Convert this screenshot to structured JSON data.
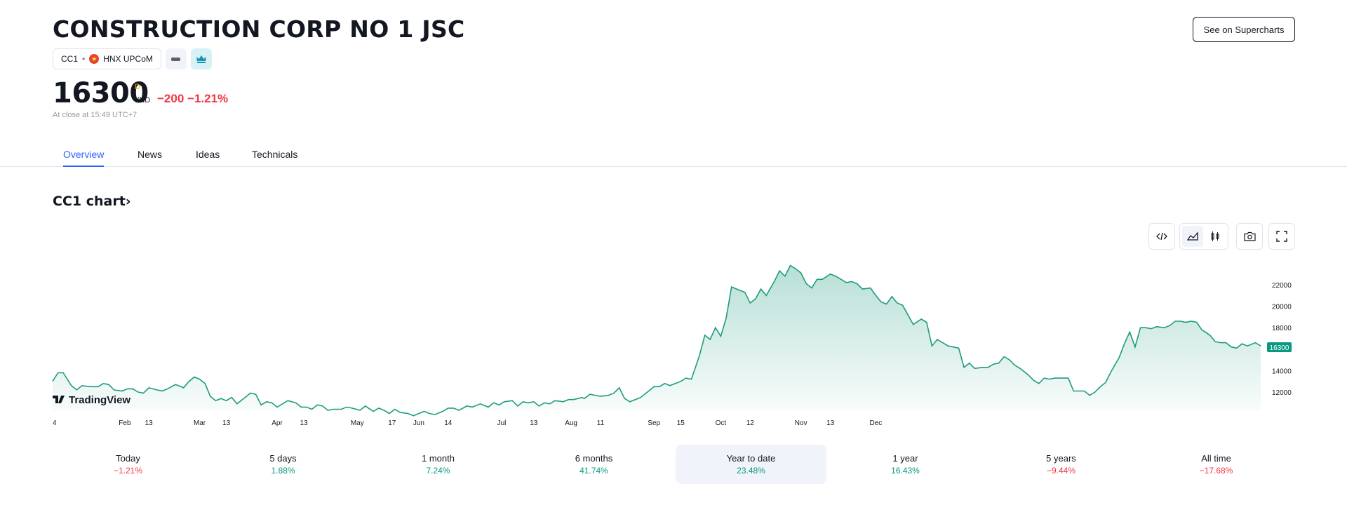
{
  "header": {
    "title": "CONSTRUCTION CORP NO 1 JSC",
    "see_button": "See on Supercharts",
    "symbol": "CC1",
    "separator": "•",
    "exchange": "HNX UPCoM",
    "flag_star": "★"
  },
  "quote": {
    "price": "16300",
    "superscript": "D",
    "currency": "VND",
    "change": "−200 −1.21%",
    "note": "At close at 15:49 UTC+7",
    "change_color": "#f23645"
  },
  "tabs": [
    "Overview",
    "News",
    "Ideas",
    "Technicals"
  ],
  "chart_section": {
    "title": "CC1 chart›",
    "brand": "TradingView",
    "last_price_label": "16300",
    "line_color": "#1e9b7f"
  },
  "toolbar_icons": [
    "embed-icon",
    "area-chart-icon",
    "candles-icon",
    "camera-icon",
    "fullscreen-icon"
  ],
  "chart_data": {
    "type": "area",
    "y_ticks": [
      "22000",
      "20000",
      "18000",
      "16000",
      "14000",
      "12000"
    ],
    "ylim": [
      10800,
      24000
    ],
    "x_ticks": [
      "4",
      "Feb",
      "13",
      "Mar",
      "13",
      "Apr",
      "13",
      "May",
      "17",
      "Jun",
      "14",
      "Jul",
      "13",
      "Aug",
      "11",
      "Sep",
      "15",
      "Oct",
      "12",
      "Nov",
      "13",
      "Dec"
    ],
    "x_tick_days": [
      0,
      27,
      36,
      55,
      65,
      84,
      94,
      114,
      127,
      137,
      148,
      168,
      180,
      194,
      205,
      225,
      235,
      250,
      261,
      280,
      291,
      308
    ],
    "series": [
      {
        "values": [
          [
            0,
            13000
          ],
          [
            2,
            13800
          ],
          [
            4,
            13800
          ],
          [
            7,
            12600
          ],
          [
            9,
            12200
          ],
          [
            11,
            12600
          ],
          [
            14,
            12500
          ],
          [
            17,
            12500
          ],
          [
            19,
            12800
          ],
          [
            21,
            12700
          ],
          [
            23,
            12200
          ],
          [
            26,
            12100
          ],
          [
            28,
            12300
          ],
          [
            30,
            12300
          ],
          [
            32,
            12000
          ],
          [
            34,
            11900
          ],
          [
            36,
            12400
          ],
          [
            39,
            12200
          ],
          [
            41,
            12100
          ],
          [
            43,
            12300
          ],
          [
            46,
            12700
          ],
          [
            48,
            12500
          ],
          [
            49,
            12400
          ],
          [
            51,
            13000
          ],
          [
            53,
            13400
          ],
          [
            55,
            13200
          ],
          [
            57,
            12800
          ],
          [
            59,
            11600
          ],
          [
            61,
            11200
          ],
          [
            63,
            11400
          ],
          [
            65,
            11200
          ],
          [
            67,
            11500
          ],
          [
            69,
            10900
          ],
          [
            72,
            11500
          ],
          [
            74,
            11900
          ],
          [
            76,
            11800
          ],
          [
            78,
            10800
          ],
          [
            80,
            11100
          ],
          [
            82,
            11000
          ],
          [
            84,
            10600
          ],
          [
            86,
            10900
          ],
          [
            88,
            11200
          ],
          [
            91,
            11000
          ],
          [
            93,
            10600
          ],
          [
            95,
            10600
          ],
          [
            97,
            10400
          ],
          [
            99,
            10800
          ],
          [
            101,
            10700
          ],
          [
            103,
            10300
          ],
          [
            105,
            10400
          ],
          [
            108,
            10400
          ],
          [
            110,
            10600
          ],
          [
            112,
            10500
          ],
          [
            115,
            10300
          ],
          [
            117,
            10700
          ],
          [
            120,
            10200
          ],
          [
            122,
            10500
          ],
          [
            124,
            10300
          ],
          [
            126,
            10000
          ],
          [
            128,
            10400
          ],
          [
            130,
            10100
          ],
          [
            133,
            10000
          ],
          [
            135,
            9800
          ],
          [
            137,
            10000
          ],
          [
            139,
            10200
          ],
          [
            141,
            10000
          ],
          [
            143,
            9900
          ],
          [
            146,
            10200
          ],
          [
            148,
            10500
          ],
          [
            150,
            10500
          ],
          [
            152,
            10300
          ],
          [
            155,
            10700
          ],
          [
            157,
            10600
          ],
          [
            160,
            10900
          ],
          [
            163,
            10600
          ],
          [
            165,
            11000
          ],
          [
            167,
            10800
          ],
          [
            169,
            11100
          ],
          [
            172,
            11200
          ],
          [
            174,
            10700
          ],
          [
            176,
            11100
          ],
          [
            178,
            11000
          ],
          [
            180,
            11100
          ],
          [
            182,
            10700
          ],
          [
            184,
            11000
          ],
          [
            186,
            10900
          ],
          [
            188,
            11200
          ],
          [
            191,
            11100
          ],
          [
            193,
            11300
          ],
          [
            195,
            11300
          ],
          [
            198,
            11500
          ],
          [
            199,
            11400
          ],
          [
            201,
            11800
          ],
          [
            203,
            11700
          ],
          [
            205,
            11600
          ],
          [
            208,
            11700
          ],
          [
            210,
            11900
          ],
          [
            212,
            12400
          ],
          [
            214,
            11400
          ],
          [
            216,
            11100
          ],
          [
            218,
            11300
          ],
          [
            220,
            11500
          ],
          [
            223,
            12100
          ],
          [
            225,
            12500
          ],
          [
            227,
            12500
          ],
          [
            229,
            12800
          ],
          [
            231,
            12600
          ],
          [
            233,
            12800
          ],
          [
            235,
            13000
          ],
          [
            237,
            13300
          ],
          [
            239,
            13200
          ],
          [
            242,
            15400
          ],
          [
            244,
            17300
          ],
          [
            246,
            16900
          ],
          [
            248,
            18000
          ],
          [
            250,
            17200
          ],
          [
            252,
            18900
          ],
          [
            254,
            21800
          ],
          [
            257,
            21500
          ],
          [
            259,
            21300
          ],
          [
            261,
            20300
          ],
          [
            263,
            20700
          ],
          [
            265,
            21600
          ],
          [
            267,
            21000
          ],
          [
            270,
            22300
          ],
          [
            272,
            23300
          ],
          [
            274,
            22800
          ],
          [
            276,
            23800
          ],
          [
            278,
            23500
          ],
          [
            280,
            23100
          ],
          [
            282,
            22100
          ],
          [
            284,
            21700
          ],
          [
            286,
            22500
          ],
          [
            288,
            22500
          ],
          [
            291,
            23000
          ],
          [
            293,
            22800
          ],
          [
            295,
            22500
          ],
          [
            297,
            22200
          ],
          [
            299,
            22300
          ],
          [
            301,
            22100
          ],
          [
            303,
            21600
          ],
          [
            306,
            21700
          ],
          [
            308,
            21000
          ],
          [
            310,
            20400
          ],
          [
            312,
            20200
          ],
          [
            314,
            20900
          ],
          [
            316,
            20300
          ],
          [
            318,
            20100
          ],
          [
            320,
            19200
          ],
          [
            322,
            18300
          ],
          [
            325,
            18800
          ],
          [
            327,
            18500
          ],
          [
            329,
            16300
          ],
          [
            331,
            16900
          ],
          [
            333,
            16600
          ],
          [
            335,
            16300
          ],
          [
            337,
            16200
          ],
          [
            339,
            16100
          ],
          [
            341,
            14300
          ],
          [
            343,
            14700
          ],
          [
            345,
            14200
          ],
          [
            348,
            14300
          ],
          [
            350,
            14300
          ],
          [
            352,
            14600
          ],
          [
            354,
            14700
          ],
          [
            356,
            15300
          ],
          [
            358,
            15000
          ],
          [
            360,
            14500
          ],
          [
            362,
            14200
          ],
          [
            365,
            13600
          ],
          [
            367,
            13100
          ],
          [
            369,
            12800
          ],
          [
            371,
            13300
          ],
          [
            373,
            13200
          ],
          [
            375,
            13300
          ],
          [
            377,
            13300
          ],
          [
            380,
            13300
          ],
          [
            382,
            12100
          ],
          [
            384,
            12100
          ],
          [
            386,
            12100
          ],
          [
            388,
            11700
          ],
          [
            390,
            12000
          ],
          [
            392,
            12500
          ],
          [
            394,
            12900
          ],
          [
            396,
            13900
          ],
          [
            399,
            15200
          ],
          [
            401,
            16500
          ],
          [
            403,
            17600
          ],
          [
            405,
            16200
          ],
          [
            407,
            18000
          ],
          [
            409,
            18000
          ],
          [
            411,
            17900
          ],
          [
            413,
            18100
          ],
          [
            416,
            18000
          ],
          [
            418,
            18200
          ],
          [
            420,
            18600
          ],
          [
            422,
            18600
          ],
          [
            424,
            18500
          ],
          [
            426,
            18600
          ],
          [
            428,
            18500
          ],
          [
            430,
            17800
          ],
          [
            433,
            17300
          ],
          [
            435,
            16700
          ],
          [
            437,
            16600
          ],
          [
            439,
            16600
          ],
          [
            441,
            16200
          ],
          [
            443,
            16100
          ],
          [
            445,
            16500
          ],
          [
            447,
            16300
          ],
          [
            450,
            16600
          ],
          [
            452,
            16300
          ]
        ]
      }
    ]
  },
  "periods": [
    {
      "label": "Today",
      "value": "−1.21%",
      "color": "#f23645"
    },
    {
      "label": "5 days",
      "value": "1.88%",
      "color": "#089981"
    },
    {
      "label": "1 month",
      "value": "7.24%",
      "color": "#089981"
    },
    {
      "label": "6 months",
      "value": "41.74%",
      "color": "#089981"
    },
    {
      "label": "Year to date",
      "value": "23.48%",
      "color": "#089981"
    },
    {
      "label": "1 year",
      "value": "16.43%",
      "color": "#089981"
    },
    {
      "label": "5 years",
      "value": "−9.44%",
      "color": "#f23645"
    },
    {
      "label": "All time",
      "value": "−17.68%",
      "color": "#f23645"
    }
  ]
}
